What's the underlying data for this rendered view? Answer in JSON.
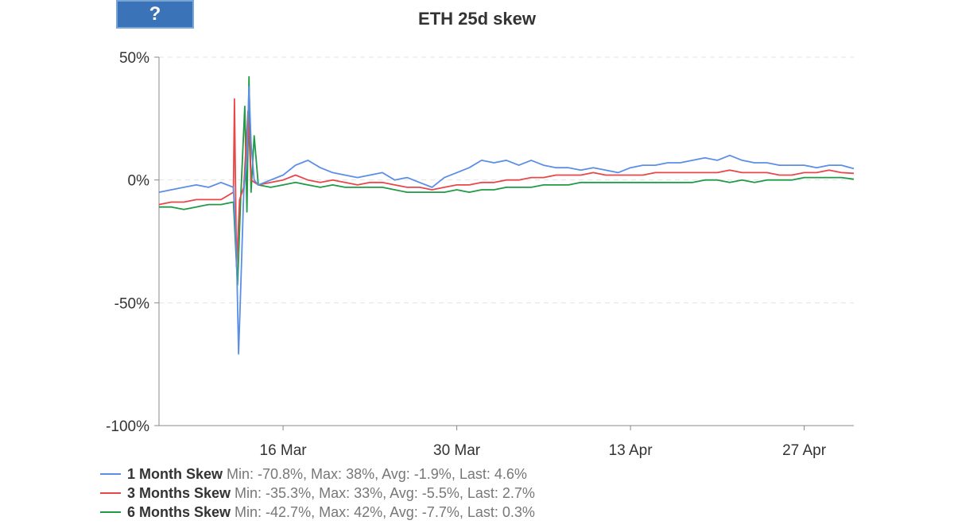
{
  "help_button": {
    "label": "?",
    "icon": "help-icon",
    "color": "#3b73b8"
  },
  "chart_data": {
    "type": "line",
    "title": "ETH 25d skew",
    "y_unit": "%",
    "ylim": [
      -100,
      50
    ],
    "yticks": [
      50,
      0,
      -50,
      -100
    ],
    "y_tick_labels": [
      "50%",
      "0%",
      "-50%",
      "-100%"
    ],
    "xlim": [
      "2020-03-06",
      "2020-05-01"
    ],
    "x_ticks": [
      "2020-03-16",
      "2020-03-30",
      "2020-04-13",
      "2020-04-27"
    ],
    "x_tick_labels": [
      "16 Mar",
      "30 Mar",
      "13 Apr",
      "27 Apr"
    ],
    "grid": {
      "horizontal": true,
      "vertical": false
    },
    "legend_position": "bottom-left",
    "series": [
      {
        "name": "1 Month Skew",
        "color": "#5b8ee6",
        "stats": "Min: -70.8%, Max: 38%, Avg: -1.9%, Last: 4.6%",
        "points": [
          [
            "2020-03-06",
            -5
          ],
          [
            "2020-03-07",
            -4
          ],
          [
            "2020-03-08",
            -3
          ],
          [
            "2020-03-09",
            -2
          ],
          [
            "2020-03-10",
            -3
          ],
          [
            "2020-03-11",
            -1
          ],
          [
            "2020-03-12",
            -3
          ],
          [
            "2020-03-12 06:00",
            -30
          ],
          [
            "2020-03-12 10:00",
            -70.8
          ],
          [
            "2020-03-12 14:00",
            -45
          ],
          [
            "2020-03-12 20:00",
            -5
          ],
          [
            "2020-03-13 02:00",
            10
          ],
          [
            "2020-03-13 06:00",
            38
          ],
          [
            "2020-03-13 10:00",
            15
          ],
          [
            "2020-03-13 16:00",
            0
          ],
          [
            "2020-03-14",
            -2
          ],
          [
            "2020-03-15",
            0
          ],
          [
            "2020-03-16",
            2
          ],
          [
            "2020-03-17",
            6
          ],
          [
            "2020-03-18",
            8
          ],
          [
            "2020-03-19",
            5
          ],
          [
            "2020-03-20",
            3
          ],
          [
            "2020-03-21",
            2
          ],
          [
            "2020-03-22",
            1
          ],
          [
            "2020-03-23",
            2
          ],
          [
            "2020-03-24",
            3
          ],
          [
            "2020-03-25",
            0
          ],
          [
            "2020-03-26",
            1
          ],
          [
            "2020-03-27",
            -1
          ],
          [
            "2020-03-28",
            -3
          ],
          [
            "2020-03-29",
            1
          ],
          [
            "2020-03-30",
            3
          ],
          [
            "2020-03-31",
            5
          ],
          [
            "2020-04-01",
            8
          ],
          [
            "2020-04-02",
            7
          ],
          [
            "2020-04-03",
            8
          ],
          [
            "2020-04-04",
            6
          ],
          [
            "2020-04-05",
            8
          ],
          [
            "2020-04-06",
            6
          ],
          [
            "2020-04-07",
            5
          ],
          [
            "2020-04-08",
            5
          ],
          [
            "2020-04-09",
            4
          ],
          [
            "2020-04-10",
            5
          ],
          [
            "2020-04-11",
            4
          ],
          [
            "2020-04-12",
            3
          ],
          [
            "2020-04-13",
            5
          ],
          [
            "2020-04-14",
            6
          ],
          [
            "2020-04-15",
            6
          ],
          [
            "2020-04-16",
            7
          ],
          [
            "2020-04-17",
            7
          ],
          [
            "2020-04-18",
            8
          ],
          [
            "2020-04-19",
            9
          ],
          [
            "2020-04-20",
            8
          ],
          [
            "2020-04-21",
            10
          ],
          [
            "2020-04-22",
            8
          ],
          [
            "2020-04-23",
            7
          ],
          [
            "2020-04-24",
            7
          ],
          [
            "2020-04-25",
            6
          ],
          [
            "2020-04-26",
            6
          ],
          [
            "2020-04-27",
            6
          ],
          [
            "2020-04-28",
            5
          ],
          [
            "2020-04-29",
            6
          ],
          [
            "2020-04-30",
            6
          ],
          [
            "2020-05-01",
            4.6
          ]
        ]
      },
      {
        "name": "3 Months Skew",
        "color": "#e8474a",
        "stats": "Min: -35.3%, Max: 33%, Avg: -5.5%, Last: 2.7%",
        "points": [
          [
            "2020-03-06",
            -10
          ],
          [
            "2020-03-07",
            -9
          ],
          [
            "2020-03-08",
            -9
          ],
          [
            "2020-03-09",
            -8
          ],
          [
            "2020-03-10",
            -8
          ],
          [
            "2020-03-11",
            -8
          ],
          [
            "2020-03-12",
            -5
          ],
          [
            "2020-03-12 02:00",
            33
          ],
          [
            "2020-03-12 06:00",
            -35.3
          ],
          [
            "2020-03-12 12:00",
            -8
          ],
          [
            "2020-03-12 20:00",
            -3
          ],
          [
            "2020-03-13 04:00",
            28
          ],
          [
            "2020-03-13 10:00",
            0
          ],
          [
            "2020-03-14",
            -2
          ],
          [
            "2020-03-15",
            -1
          ],
          [
            "2020-03-16",
            0
          ],
          [
            "2020-03-17",
            2
          ],
          [
            "2020-03-18",
            0
          ],
          [
            "2020-03-19",
            -1
          ],
          [
            "2020-03-20",
            0
          ],
          [
            "2020-03-21",
            -1
          ],
          [
            "2020-03-22",
            -2
          ],
          [
            "2020-03-23",
            -1
          ],
          [
            "2020-03-24",
            -1
          ],
          [
            "2020-03-25",
            -2
          ],
          [
            "2020-03-26",
            -3
          ],
          [
            "2020-03-27",
            -3
          ],
          [
            "2020-03-28",
            -4
          ],
          [
            "2020-03-29",
            -3
          ],
          [
            "2020-03-30",
            -2
          ],
          [
            "2020-03-31",
            -2
          ],
          [
            "2020-04-01",
            -1
          ],
          [
            "2020-04-02",
            -1
          ],
          [
            "2020-04-03",
            0
          ],
          [
            "2020-04-04",
            0
          ],
          [
            "2020-04-05",
            1
          ],
          [
            "2020-04-06",
            1
          ],
          [
            "2020-04-07",
            2
          ],
          [
            "2020-04-08",
            2
          ],
          [
            "2020-04-09",
            2
          ],
          [
            "2020-04-10",
            3
          ],
          [
            "2020-04-11",
            2
          ],
          [
            "2020-04-12",
            2
          ],
          [
            "2020-04-13",
            2
          ],
          [
            "2020-04-14",
            2
          ],
          [
            "2020-04-15",
            3
          ],
          [
            "2020-04-16",
            3
          ],
          [
            "2020-04-17",
            3
          ],
          [
            "2020-04-18",
            3
          ],
          [
            "2020-04-19",
            3
          ],
          [
            "2020-04-20",
            3
          ],
          [
            "2020-04-21",
            4
          ],
          [
            "2020-04-22",
            3
          ],
          [
            "2020-04-23",
            3
          ],
          [
            "2020-04-24",
            3
          ],
          [
            "2020-04-25",
            2
          ],
          [
            "2020-04-26",
            2
          ],
          [
            "2020-04-27",
            3
          ],
          [
            "2020-04-28",
            3
          ],
          [
            "2020-04-29",
            4
          ],
          [
            "2020-04-30",
            3
          ],
          [
            "2020-05-01",
            2.7
          ]
        ]
      },
      {
        "name": "6 Months Skew",
        "color": "#1f9a45",
        "stats": "Min: -42.7%, Max: 42%, Avg: -7.7%, Last: 0.3%",
        "points": [
          [
            "2020-03-06",
            -11
          ],
          [
            "2020-03-07",
            -11
          ],
          [
            "2020-03-08",
            -12
          ],
          [
            "2020-03-09",
            -11
          ],
          [
            "2020-03-10",
            -10
          ],
          [
            "2020-03-11",
            -10
          ],
          [
            "2020-03-12",
            -9
          ],
          [
            "2020-03-12 08:00",
            -42.7
          ],
          [
            "2020-03-12 14:00",
            -8
          ],
          [
            "2020-03-12 22:00",
            30
          ],
          [
            "2020-03-13 02:00",
            -13
          ],
          [
            "2020-03-13 06:00",
            42
          ],
          [
            "2020-03-13 10:00",
            -5
          ],
          [
            "2020-03-13 16:00",
            18
          ],
          [
            "2020-03-14",
            -2
          ],
          [
            "2020-03-15",
            -3
          ],
          [
            "2020-03-16",
            -2
          ],
          [
            "2020-03-17",
            -1
          ],
          [
            "2020-03-18",
            -2
          ],
          [
            "2020-03-19",
            -3
          ],
          [
            "2020-03-20",
            -2
          ],
          [
            "2020-03-21",
            -3
          ],
          [
            "2020-03-22",
            -3
          ],
          [
            "2020-03-23",
            -3
          ],
          [
            "2020-03-24",
            -3
          ],
          [
            "2020-03-25",
            -4
          ],
          [
            "2020-03-26",
            -5
          ],
          [
            "2020-03-27",
            -5
          ],
          [
            "2020-03-28",
            -5
          ],
          [
            "2020-03-29",
            -5
          ],
          [
            "2020-03-30",
            -4
          ],
          [
            "2020-03-31",
            -5
          ],
          [
            "2020-04-01",
            -4
          ],
          [
            "2020-04-02",
            -4
          ],
          [
            "2020-04-03",
            -3
          ],
          [
            "2020-04-04",
            -3
          ],
          [
            "2020-04-05",
            -3
          ],
          [
            "2020-04-06",
            -2
          ],
          [
            "2020-04-07",
            -2
          ],
          [
            "2020-04-08",
            -2
          ],
          [
            "2020-04-09",
            -1
          ],
          [
            "2020-04-10",
            -1
          ],
          [
            "2020-04-11",
            -1
          ],
          [
            "2020-04-12",
            -1
          ],
          [
            "2020-04-13",
            -1
          ],
          [
            "2020-04-14",
            -1
          ],
          [
            "2020-04-15",
            -1
          ],
          [
            "2020-04-16",
            -1
          ],
          [
            "2020-04-17",
            -1
          ],
          [
            "2020-04-18",
            -1
          ],
          [
            "2020-04-19",
            0
          ],
          [
            "2020-04-20",
            0
          ],
          [
            "2020-04-21",
            -1
          ],
          [
            "2020-04-22",
            0
          ],
          [
            "2020-04-23",
            -1
          ],
          [
            "2020-04-24",
            0
          ],
          [
            "2020-04-25",
            0
          ],
          [
            "2020-04-26",
            0
          ],
          [
            "2020-04-27",
            1
          ],
          [
            "2020-04-28",
            1
          ],
          [
            "2020-04-29",
            1
          ],
          [
            "2020-04-30",
            1
          ],
          [
            "2020-05-01",
            0.3
          ]
        ]
      }
    ]
  }
}
